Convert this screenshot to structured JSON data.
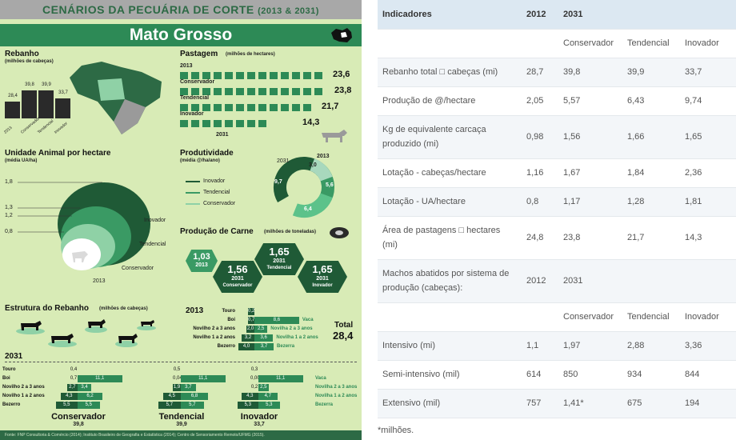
{
  "infographic": {
    "banner_title": "CENÁRIOS DA PECUÁRIA DE CORTE",
    "banner_years": "(2013 & 2031)",
    "state": "Mato Grosso",
    "rebanho": {
      "title": "Rebanho",
      "unit": "(milhões de cabeças)",
      "values": [
        "28,4",
        "39,8",
        "39,9",
        "33,7"
      ],
      "heights": [
        0.5,
        0.84,
        0.84,
        0.59
      ],
      "labels": [
        "2013",
        "Conservador",
        "Tendencial",
        "Inovador"
      ]
    },
    "pastagem": {
      "title": "Pastagem",
      "unit": "(milhões de hectares)",
      "rows": [
        {
          "label": "2013",
          "value": "23,6"
        },
        {
          "label": "Conservador",
          "value": "23,8"
        },
        {
          "label": "Tendencial",
          "value": "21,7"
        },
        {
          "label": "Inovador",
          "value": "14,3"
        }
      ],
      "end_label": "2031"
    },
    "ua": {
      "title": "Unidade Animal por hectare",
      "unit": "(média UA/ha)",
      "ticks": [
        "1,8",
        "1,3",
        "1,2",
        "0,8"
      ],
      "labels": [
        "Inovador",
        "Tendencial",
        "Conservador",
        "2013"
      ]
    },
    "produtividade": {
      "title": "Produtividade",
      "unit": "(média @/ha/ano)",
      "legend": [
        "Inovador",
        "Tendencial",
        "Conservador"
      ],
      "year_2031": "2031",
      "year_2013": "2013",
      "values": [
        "9,7",
        "6,4",
        "5,6",
        "3,0"
      ]
    },
    "carne": {
      "title": "Produção de Carne",
      "unit": "(milhões de toneladas)",
      "items": [
        {
          "value": "1,03",
          "year": "2013",
          "label": ""
        },
        {
          "value": "1,56",
          "year": "2031",
          "label": "Conservador"
        },
        {
          "value": "1,65",
          "year": "2031",
          "label": "Tendencial"
        },
        {
          "value": "1,65",
          "year": "2031",
          "label": "Inovador"
        }
      ]
    },
    "estrutura": {
      "title": "Estrutura do Rebanho",
      "unit": "(milhões de cabeças)",
      "year_2013": "2013",
      "rows_2013": [
        {
          "label": "Touro",
          "left": "0,2",
          "right": "",
          "rlabel": ""
        },
        {
          "label": "Boi",
          "left": "0,7",
          "right": "8,6",
          "rlabel": "Vaca"
        },
        {
          "label": "Novilho 2 a 3 anos",
          "left": "2,0",
          "right": "2,5",
          "rlabel": "Novilha 2 a 3 anos"
        },
        {
          "label": "Novilho 1 a 2 anos",
          "left": "3,2",
          "right": "3,6",
          "rlabel": "Novilha 1 a 2 anos"
        },
        {
          "label": "Bezerro",
          "left": "4,0",
          "right": "3,7",
          "rlabel": "Bezerra"
        }
      ],
      "total_label": "Total",
      "total_value": "28,4",
      "year_2031": "2031",
      "row_labels": [
        "Touro",
        "Boi",
        "Novilho 2 a 3 anos",
        "Novilho 1 a 2 anos",
        "Bezerro"
      ],
      "right_labels": [
        "",
        "Vaca",
        "Novilha 2 a 3 anos",
        "Novilha 1 a 2 anos",
        "Bezerra"
      ],
      "scenarios": [
        {
          "name": "Conservador",
          "total": "39,8",
          "left": [
            "0,4",
            "0,7",
            "2,7",
            "4,3",
            "5,5"
          ],
          "right": [
            "",
            "11,1",
            "3,4",
            "6,2",
            "5,5"
          ]
        },
        {
          "name": "Tendencial",
          "total": "39,9",
          "left": [
            "0,5",
            "0,04",
            "1,9",
            "4,5",
            "5,7"
          ],
          "right": [
            "",
            "11,1",
            "3,7",
            "6,8",
            "5,7"
          ]
        },
        {
          "name": "Inovador",
          "total": "33,7",
          "left": [
            "0,3",
            "0,007",
            "0,2",
            "4,3",
            "5,3"
          ],
          "right": [
            "",
            "11,1",
            "2,5",
            "4,7",
            "5,3"
          ]
        }
      ]
    },
    "footer": "Fonte: FNP Consultoria & Comércio (2014); Instituto Brasileiro de Geografia e Estatística (2014); Centro de Sensoriamento Remoto/UFMG (2015)."
  },
  "table": {
    "headers": [
      "Indicadores",
      "2012",
      "2031",
      "",
      ""
    ],
    "rows": [
      {
        "cells": [
          "",
          "",
          "Conservador",
          "Tendencial",
          "Inovador"
        ],
        "tall": false
      },
      {
        "cells": [
          "Rebanho total □ cabeças (mi)",
          "28,7",
          "39,8",
          "39,9",
          "33,7"
        ],
        "tall": false
      },
      {
        "cells": [
          "Produção de @/hectare",
          "2,05",
          "5,57",
          "6,43",
          "9,74"
        ],
        "tall": false
      },
      {
        "cells": [
          "Kg de equivalente carcaça produzido (mi)",
          "0,98",
          "1,56",
          "1,66",
          "1,65"
        ],
        "tall": true
      },
      {
        "cells": [
          "Lotação - cabeças/hectare",
          "1,16",
          "1,67",
          "1,84",
          "2,36"
        ],
        "tall": false
      },
      {
        "cells": [
          "Lotação - UA/hectare",
          "0,8",
          "1,17",
          "1,28",
          "1,81"
        ],
        "tall": false
      },
      {
        "cells": [
          "Área de pastagens □ hectares (mi)",
          "24,8",
          "23,8",
          "21,7",
          "14,3"
        ],
        "tall": true
      },
      {
        "cells": [
          "Machos abatidos por sistema de produção (cabeças):",
          "2012",
          "2031",
          "",
          ""
        ],
        "tall": true
      },
      {
        "cells": [
          "",
          "",
          "Conservador",
          "Tendencial",
          "Inovador"
        ],
        "tall": false
      },
      {
        "cells": [
          "Intensivo (mi)",
          "1,1",
          "1,97",
          "2,88",
          "3,36"
        ],
        "tall": false
      },
      {
        "cells": [
          "Semi-intensivo (mil)",
          "614",
          "850",
          "934",
          "844"
        ],
        "tall": false
      },
      {
        "cells": [
          "Extensivo (mil)",
          "757",
          "1,41*",
          "675",
          "194"
        ],
        "tall": false
      }
    ],
    "note": "*milhões."
  }
}
